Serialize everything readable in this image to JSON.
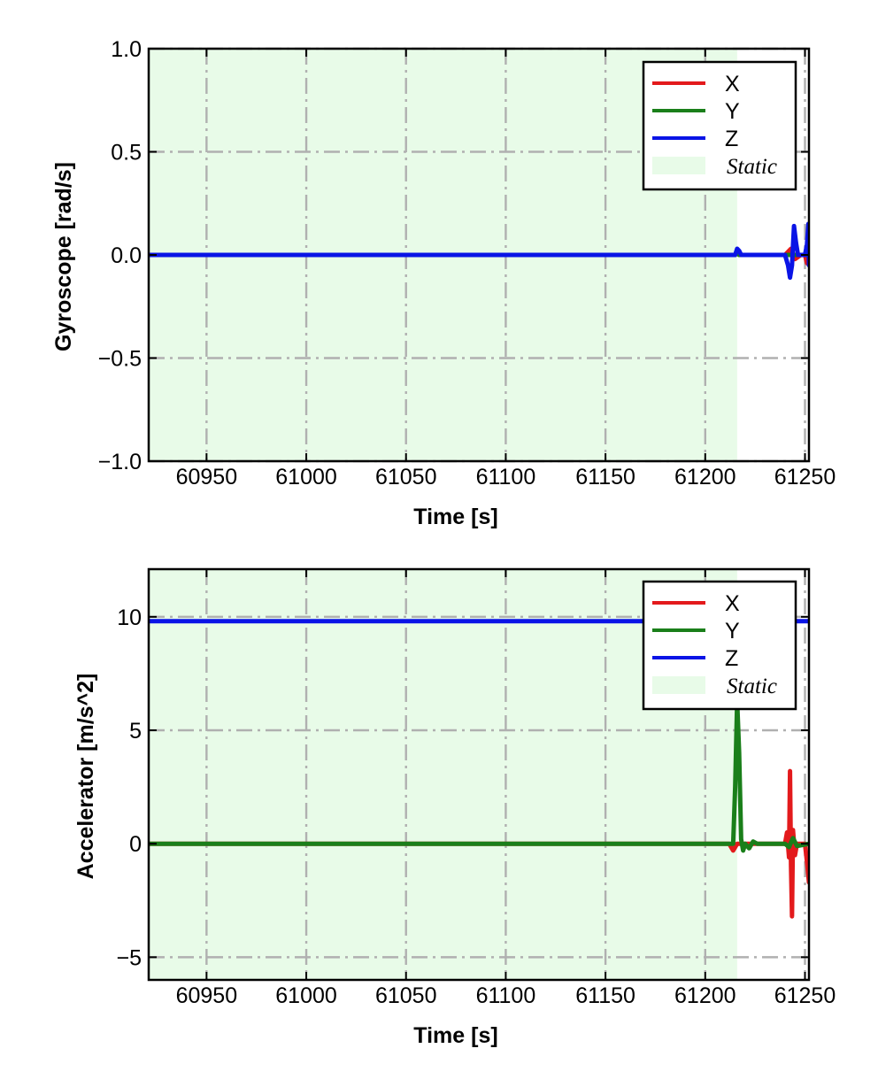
{
  "chart_data": [
    {
      "type": "line",
      "xlabel": "Time [s]",
      "ylabel": "Gyroscope [rad/s]",
      "xlim": [
        60921,
        61252
      ],
      "ylim": [
        -1.0,
        1.0
      ],
      "xticks": [
        60950,
        61000,
        61050,
        61100,
        61150,
        61200,
        61250
      ],
      "yticks": [
        1.0,
        0.5,
        0.0,
        -0.5,
        -1.0
      ],
      "ytick_labels": [
        "1.0",
        "0.5",
        "0.0",
        "−0.5",
        "−1.0"
      ],
      "static_region": [
        60921,
        61216
      ],
      "grid": true,
      "legend_position": "top-right",
      "legend": [
        {
          "label": "X",
          "color": "#e31a1c",
          "kind": "line"
        },
        {
          "label": "Y",
          "color": "#1a7f1a",
          "kind": "line"
        },
        {
          "label": "Z",
          "color": "#0a14e6",
          "kind": "line"
        },
        {
          "label": "Static",
          "color": "#e8fbe8",
          "kind": "patch"
        }
      ],
      "series": [
        {
          "name": "X",
          "color": "#e31a1c",
          "x": [
            60921,
            61215,
            61216,
            61217,
            61240,
            61243,
            61245,
            61248,
            61250,
            61251,
            61252
          ],
          "y": [
            0.0,
            0.0,
            0.02,
            0.0,
            0.0,
            0.03,
            -0.02,
            0.0,
            0.0,
            -0.04,
            0.0
          ]
        },
        {
          "name": "Y",
          "color": "#1a7f1a",
          "x": [
            60921,
            61215,
            61216,
            61217,
            61252
          ],
          "y": [
            0.0,
            0.0,
            0.01,
            0.0,
            0.0
          ]
        },
        {
          "name": "Z",
          "color": "#0a14e6",
          "x": [
            60921,
            61215,
            61216,
            61217,
            61218,
            61240,
            61241.5,
            61242.5,
            61243.5,
            61244.5,
            61245.5,
            61246.5,
            61250,
            61251,
            61251.7,
            61252
          ],
          "y": [
            0.0,
            0.0,
            0.03,
            0.02,
            0.0,
            0.0,
            -0.05,
            -0.11,
            -0.05,
            0.14,
            0.06,
            0.0,
            0.0,
            0.05,
            0.15,
            -0.05
          ]
        }
      ]
    },
    {
      "type": "line",
      "xlabel": "Time [s]",
      "ylabel": "Accelerator [m/s^2]",
      "xlim": [
        60921,
        61252
      ],
      "ylim": [
        -6.0,
        12.1
      ],
      "xticks": [
        60950,
        61000,
        61050,
        61100,
        61150,
        61200,
        61250
      ],
      "yticks": [
        10,
        5,
        0,
        -5
      ],
      "ytick_labels": [
        "10",
        "5",
        "0",
        "−5"
      ],
      "static_region": [
        60921,
        61216
      ],
      "grid": true,
      "legend_position": "top-right",
      "legend": [
        {
          "label": "X",
          "color": "#e31a1c",
          "kind": "line"
        },
        {
          "label": "Y",
          "color": "#1a7f1a",
          "kind": "line"
        },
        {
          "label": "Z",
          "color": "#0a14e6",
          "kind": "line"
        },
        {
          "label": "Static",
          "color": "#e8fbe8",
          "kind": "patch"
        }
      ],
      "series": [
        {
          "name": "Z",
          "color": "#0a14e6",
          "x": [
            60921,
            61252
          ],
          "y": [
            9.81,
            9.81
          ]
        },
        {
          "name": "X",
          "color": "#e31a1c",
          "x": [
            60921,
            61212,
            61214,
            61216,
            61240,
            61241,
            61242,
            61242.5,
            61243,
            61243.5,
            61244,
            61245,
            61246,
            61248,
            61250,
            61251,
            61252
          ],
          "y": [
            0.0,
            0.0,
            -0.3,
            0.0,
            0.0,
            0.5,
            -0.6,
            3.2,
            -1.0,
            -3.2,
            0.6,
            -0.5,
            0.0,
            0.0,
            0.0,
            -0.8,
            -1.7
          ]
        },
        {
          "name": "Y",
          "color": "#1a7f1a",
          "x": [
            60921,
            61214,
            61215,
            61216,
            61217,
            61218,
            61219,
            61220,
            61222,
            61224,
            61226,
            61230,
            61240,
            61242,
            61244,
            61246,
            61252
          ],
          "y": [
            0.0,
            0.0,
            2.5,
            6.3,
            4.0,
            0.2,
            -0.3,
            0.0,
            -0.2,
            0.1,
            0.0,
            0.0,
            0.0,
            -0.15,
            0.25,
            -0.1,
            0.0
          ]
        }
      ]
    }
  ]
}
